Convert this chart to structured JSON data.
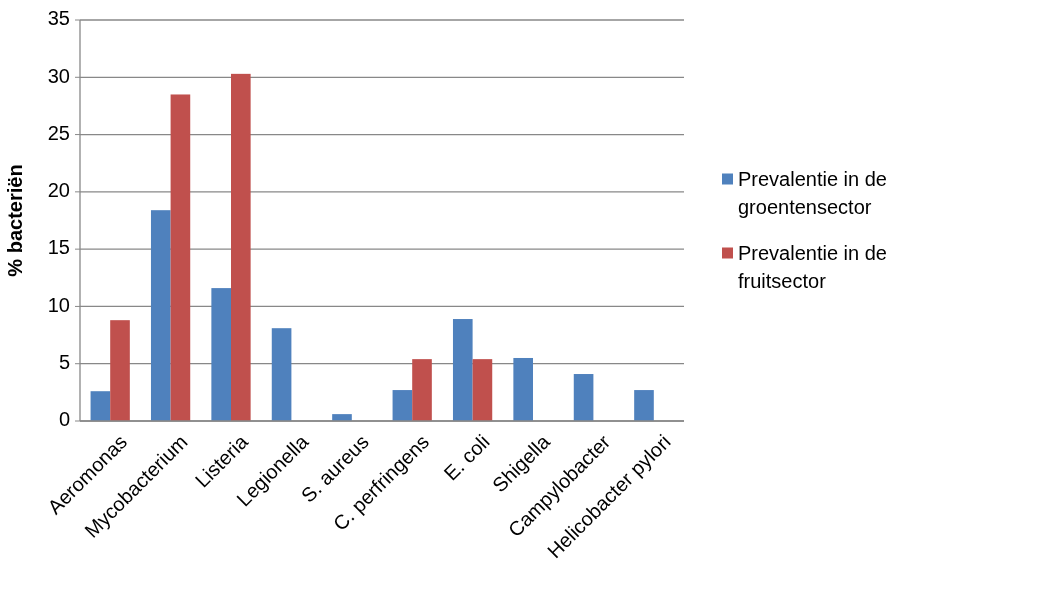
{
  "chart_data": {
    "type": "bar",
    "ylabel": "% bacteriën",
    "categories": [
      "Aeromonas",
      "Mycobacterium",
      "Listeria",
      "Legionella",
      "S. aureus",
      "C. perfringens",
      "E. coli",
      "Shigella",
      "Campylobacter",
      "Helicobacter pylori"
    ],
    "series": [
      {
        "name": "Prevalentie in de groentensector",
        "color": "#4f81bd",
        "values": [
          2.6,
          18.4,
          11.6,
          8.1,
          0.6,
          2.7,
          8.9,
          5.5,
          4.1,
          2.7
        ]
      },
      {
        "name": "Prevalentie in de fruitsector",
        "color": "#c0504d",
        "values": [
          8.8,
          28.5,
          30.3,
          null,
          null,
          5.4,
          5.4,
          null,
          null,
          null
        ]
      }
    ],
    "ylim": [
      0,
      35
    ],
    "yticks": [
      0,
      5,
      10,
      15,
      20,
      25,
      30,
      35
    ],
    "grid": "y",
    "legend": "right"
  }
}
